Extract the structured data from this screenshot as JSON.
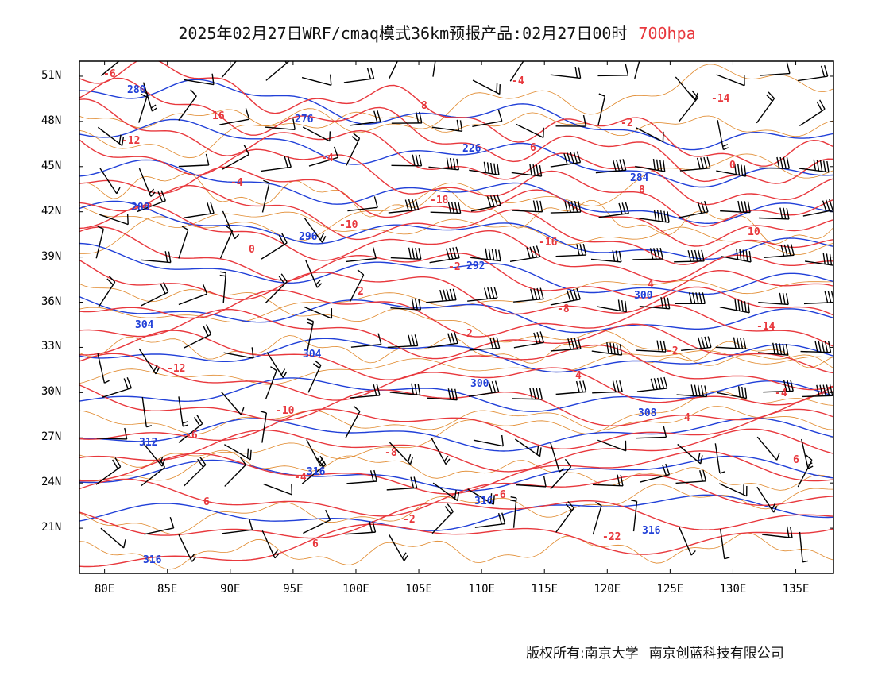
{
  "title": {
    "main": "2025年02月27日WRF/cmaq模式36km预报产品:02月27日00时",
    "level": "700hpa"
  },
  "colors": {
    "temperature_contour": "#e8383d",
    "height_contour": "#2140d8",
    "boundary_lines": "#e0882b",
    "wind_barb": "#000000"
  },
  "map": {
    "lon_range": [
      78,
      138
    ],
    "lat_range": [
      18,
      52
    ],
    "lat_ticks": [
      "51N",
      "48N",
      "45N",
      "42N",
      "39N",
      "36N",
      "33N",
      "30N",
      "27N",
      "24N",
      "21N"
    ],
    "lon_ticks": [
      "80E",
      "85E",
      "90E",
      "95E",
      "100E",
      "105E",
      "110E",
      "115E",
      "120E",
      "125E",
      "130E",
      "135E"
    ],
    "temperature_labels": [
      "-6",
      "16",
      "-4",
      "-18",
      "-16",
      "4",
      "-14",
      "-12",
      "-10",
      "-8",
      "-6",
      "-22",
      "-14",
      "-12",
      "-4",
      "-10",
      "-2",
      "-8",
      "-2",
      "-4",
      "-6",
      "-4",
      "-2",
      "-4",
      "-2",
      "0",
      "-2",
      "0",
      "2",
      "2",
      "4",
      "4",
      "6",
      "6",
      "6",
      "8",
      "6",
      "8",
      "10"
    ],
    "height_labels": [
      "280",
      "276",
      "226",
      "284",
      "288",
      "296",
      "292",
      "300",
      "304",
      "304",
      "300",
      "308",
      "312",
      "316",
      "316",
      "316",
      "316"
    ]
  },
  "footer": {
    "owner": "版权所有:南京大学",
    "partner": "南京创蓝科技有限公司"
  }
}
